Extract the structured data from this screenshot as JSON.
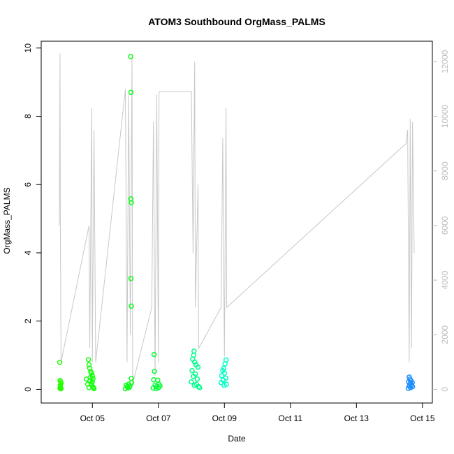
{
  "chart_data": {
    "type": "scatter",
    "title": "ATOM3 Southbound OrgMass_PALMS",
    "xlabel": "Date",
    "ylabel": "OrgMass_PALMS",
    "x_ticks": [
      "Oct 05",
      "Oct 07",
      "Oct 09",
      "Oct 11",
      "Oct 13",
      "Oct 15"
    ],
    "x_tick_days": [
      5,
      7,
      9,
      11,
      13,
      15
    ],
    "xlim_days": [
      3.45,
      15.3
    ],
    "y_ticks": [
      0,
      2,
      4,
      6,
      8,
      10
    ],
    "ylim": [
      -0.4,
      10.2
    ],
    "y2_ticks": [
      0,
      2000,
      4000,
      6000,
      8000,
      10000,
      12000
    ],
    "y2lim": [
      -500,
      12750
    ],
    "colors": {
      "frame": "#000000",
      "secondary_line": "#c8c8c8",
      "secondary_axis": "#bdbdbd"
    },
    "series": [
      {
        "x_range_days": [
          4.0,
          4.06
        ],
        "color": "#26ff00",
        "points": [
          [
            4.01,
            0.79
          ],
          [
            4.02,
            0.26
          ],
          [
            4.03,
            0.12
          ],
          [
            4.04,
            0.05
          ],
          [
            4.05,
            0.18
          ],
          [
            4.02,
            0.03
          ],
          [
            4.04,
            0.22
          ],
          [
            4.03,
            0.08
          ],
          [
            4.05,
            0.02
          ]
        ]
      },
      {
        "x_range_days": [
          4.8,
          5.1
        ],
        "color": "#1aff10",
        "points": [
          [
            4.82,
            0.3
          ],
          [
            4.88,
            0.87
          ],
          [
            4.9,
            0.72
          ],
          [
            4.92,
            0.62
          ],
          [
            4.95,
            0.52
          ],
          [
            4.97,
            0.48
          ],
          [
            4.99,
            0.42
          ],
          [
            5.0,
            0.38
          ],
          [
            5.02,
            0.31
          ],
          [
            4.93,
            0.25
          ],
          [
            4.96,
            0.18
          ],
          [
            4.98,
            0.12
          ],
          [
            5.01,
            0.08
          ],
          [
            5.03,
            0.05
          ],
          [
            4.86,
            0.15
          ],
          [
            4.9,
            0.05
          ],
          [
            5.05,
            0.02
          ],
          [
            4.94,
            0.35
          ],
          [
            5.0,
            0.22
          ]
        ]
      },
      {
        "x_range_days": [
          5.98,
          6.2
        ],
        "color": "#10ff1c",
        "points": [
          [
            6.16,
            9.75
          ],
          [
            6.17,
            8.7
          ],
          [
            6.17,
            5.58
          ],
          [
            6.18,
            5.47
          ],
          [
            6.17,
            3.25
          ],
          [
            6.18,
            2.44
          ],
          [
            6.18,
            0.32
          ],
          [
            6.02,
            0.12
          ],
          [
            6.05,
            0.08
          ],
          [
            6.08,
            0.04
          ],
          [
            6.1,
            0.15
          ],
          [
            6.12,
            0.06
          ],
          [
            6.14,
            0.1
          ],
          [
            6.0,
            0.02
          ],
          [
            6.19,
            0.2
          ]
        ]
      },
      {
        "x_range_days": [
          6.8,
          7.12
        ],
        "color": "#04ff36",
        "points": [
          [
            6.87,
            1.02
          ],
          [
            6.88,
            0.53
          ],
          [
            6.86,
            0.28
          ],
          [
            6.98,
            0.27
          ],
          [
            6.9,
            0.12
          ],
          [
            6.95,
            0.08
          ],
          [
            7.0,
            0.05
          ],
          [
            7.05,
            0.1
          ],
          [
            6.84,
            0.04
          ],
          [
            7.02,
            0.15
          ],
          [
            6.93,
            0.02
          ]
        ]
      },
      {
        "x_range_days": [
          7.95,
          8.3
        ],
        "color": "#00ff8a",
        "points": [
          [
            8.08,
            1.12
          ],
          [
            8.07,
            1.0
          ],
          [
            8.04,
            0.88
          ],
          [
            8.1,
            0.8
          ],
          [
            8.14,
            0.72
          ],
          [
            8.2,
            0.65
          ],
          [
            8.02,
            0.55
          ],
          [
            8.12,
            0.45
          ],
          [
            8.06,
            0.38
          ],
          [
            8.18,
            0.3
          ],
          [
            8.0,
            0.22
          ],
          [
            8.15,
            0.15
          ],
          [
            8.22,
            0.08
          ],
          [
            8.09,
            0.12
          ],
          [
            8.25,
            0.05
          ]
        ]
      },
      {
        "x_range_days": [
          8.85,
          9.1
        ],
        "color": "#00ffc4",
        "points": [
          [
            9.05,
            0.86
          ],
          [
            9.02,
            0.75
          ],
          [
            8.98,
            0.62
          ],
          [
            8.95,
            0.55
          ],
          [
            9.0,
            0.48
          ],
          [
            8.92,
            0.4
          ],
          [
            9.04,
            0.33
          ],
          [
            8.96,
            0.27
          ],
          [
            8.9,
            0.2
          ],
          [
            9.06,
            0.15
          ],
          [
            8.99,
            0.12
          ]
        ]
      },
      {
        "x_range_days": [
          14.55,
          14.75
        ],
        "color": "#1a8cff",
        "points": [
          [
            14.6,
            0.36
          ],
          [
            14.62,
            0.3
          ],
          [
            14.65,
            0.26
          ],
          [
            14.58,
            0.22
          ],
          [
            14.63,
            0.18
          ],
          [
            14.67,
            0.14
          ],
          [
            14.6,
            0.1
          ],
          [
            14.7,
            0.08
          ],
          [
            14.64,
            0.05
          ],
          [
            14.57,
            0.03
          ],
          [
            14.69,
            0.2
          ],
          [
            14.66,
            0.12
          ]
        ]
      }
    ],
    "secondary_series": {
      "type": "line",
      "axis": "right",
      "points": [
        [
          4.0,
          6000
        ],
        [
          4.02,
          12300
        ],
        [
          4.03,
          6100
        ],
        [
          4.05,
          1000
        ],
        [
          4.9,
          6000
        ],
        [
          4.92,
          1500
        ],
        [
          4.98,
          10300
        ],
        [
          5.0,
          1000
        ],
        [
          5.05,
          9500
        ],
        [
          5.1,
          1000
        ],
        [
          6.0,
          11000
        ],
        [
          6.05,
          1000
        ],
        [
          6.1,
          10800
        ],
        [
          6.15,
          2000
        ],
        [
          6.2,
          12200
        ],
        [
          6.22,
          200
        ],
        [
          6.8,
          3000
        ],
        [
          6.85,
          9800
        ],
        [
          6.9,
          500
        ],
        [
          6.95,
          10800
        ],
        [
          7.0,
          1000
        ],
        [
          7.02,
          10900
        ],
        [
          8.0,
          10900
        ],
        [
          8.05,
          5000
        ],
        [
          8.1,
          12000
        ],
        [
          8.12,
          3000
        ],
        [
          8.2,
          7500
        ],
        [
          8.22,
          1500
        ],
        [
          8.9,
          3000
        ],
        [
          8.95,
          9200
        ],
        [
          9.0,
          1200
        ],
        [
          9.05,
          10300
        ],
        [
          9.07,
          3000
        ],
        [
          14.5,
          9000
        ],
        [
          14.55,
          9500
        ],
        [
          14.6,
          1000
        ],
        [
          14.63,
          9900
        ],
        [
          14.67,
          1500
        ],
        [
          14.7,
          9800
        ],
        [
          14.75,
          5000
        ]
      ]
    },
    "grid": false,
    "legend": "none"
  }
}
